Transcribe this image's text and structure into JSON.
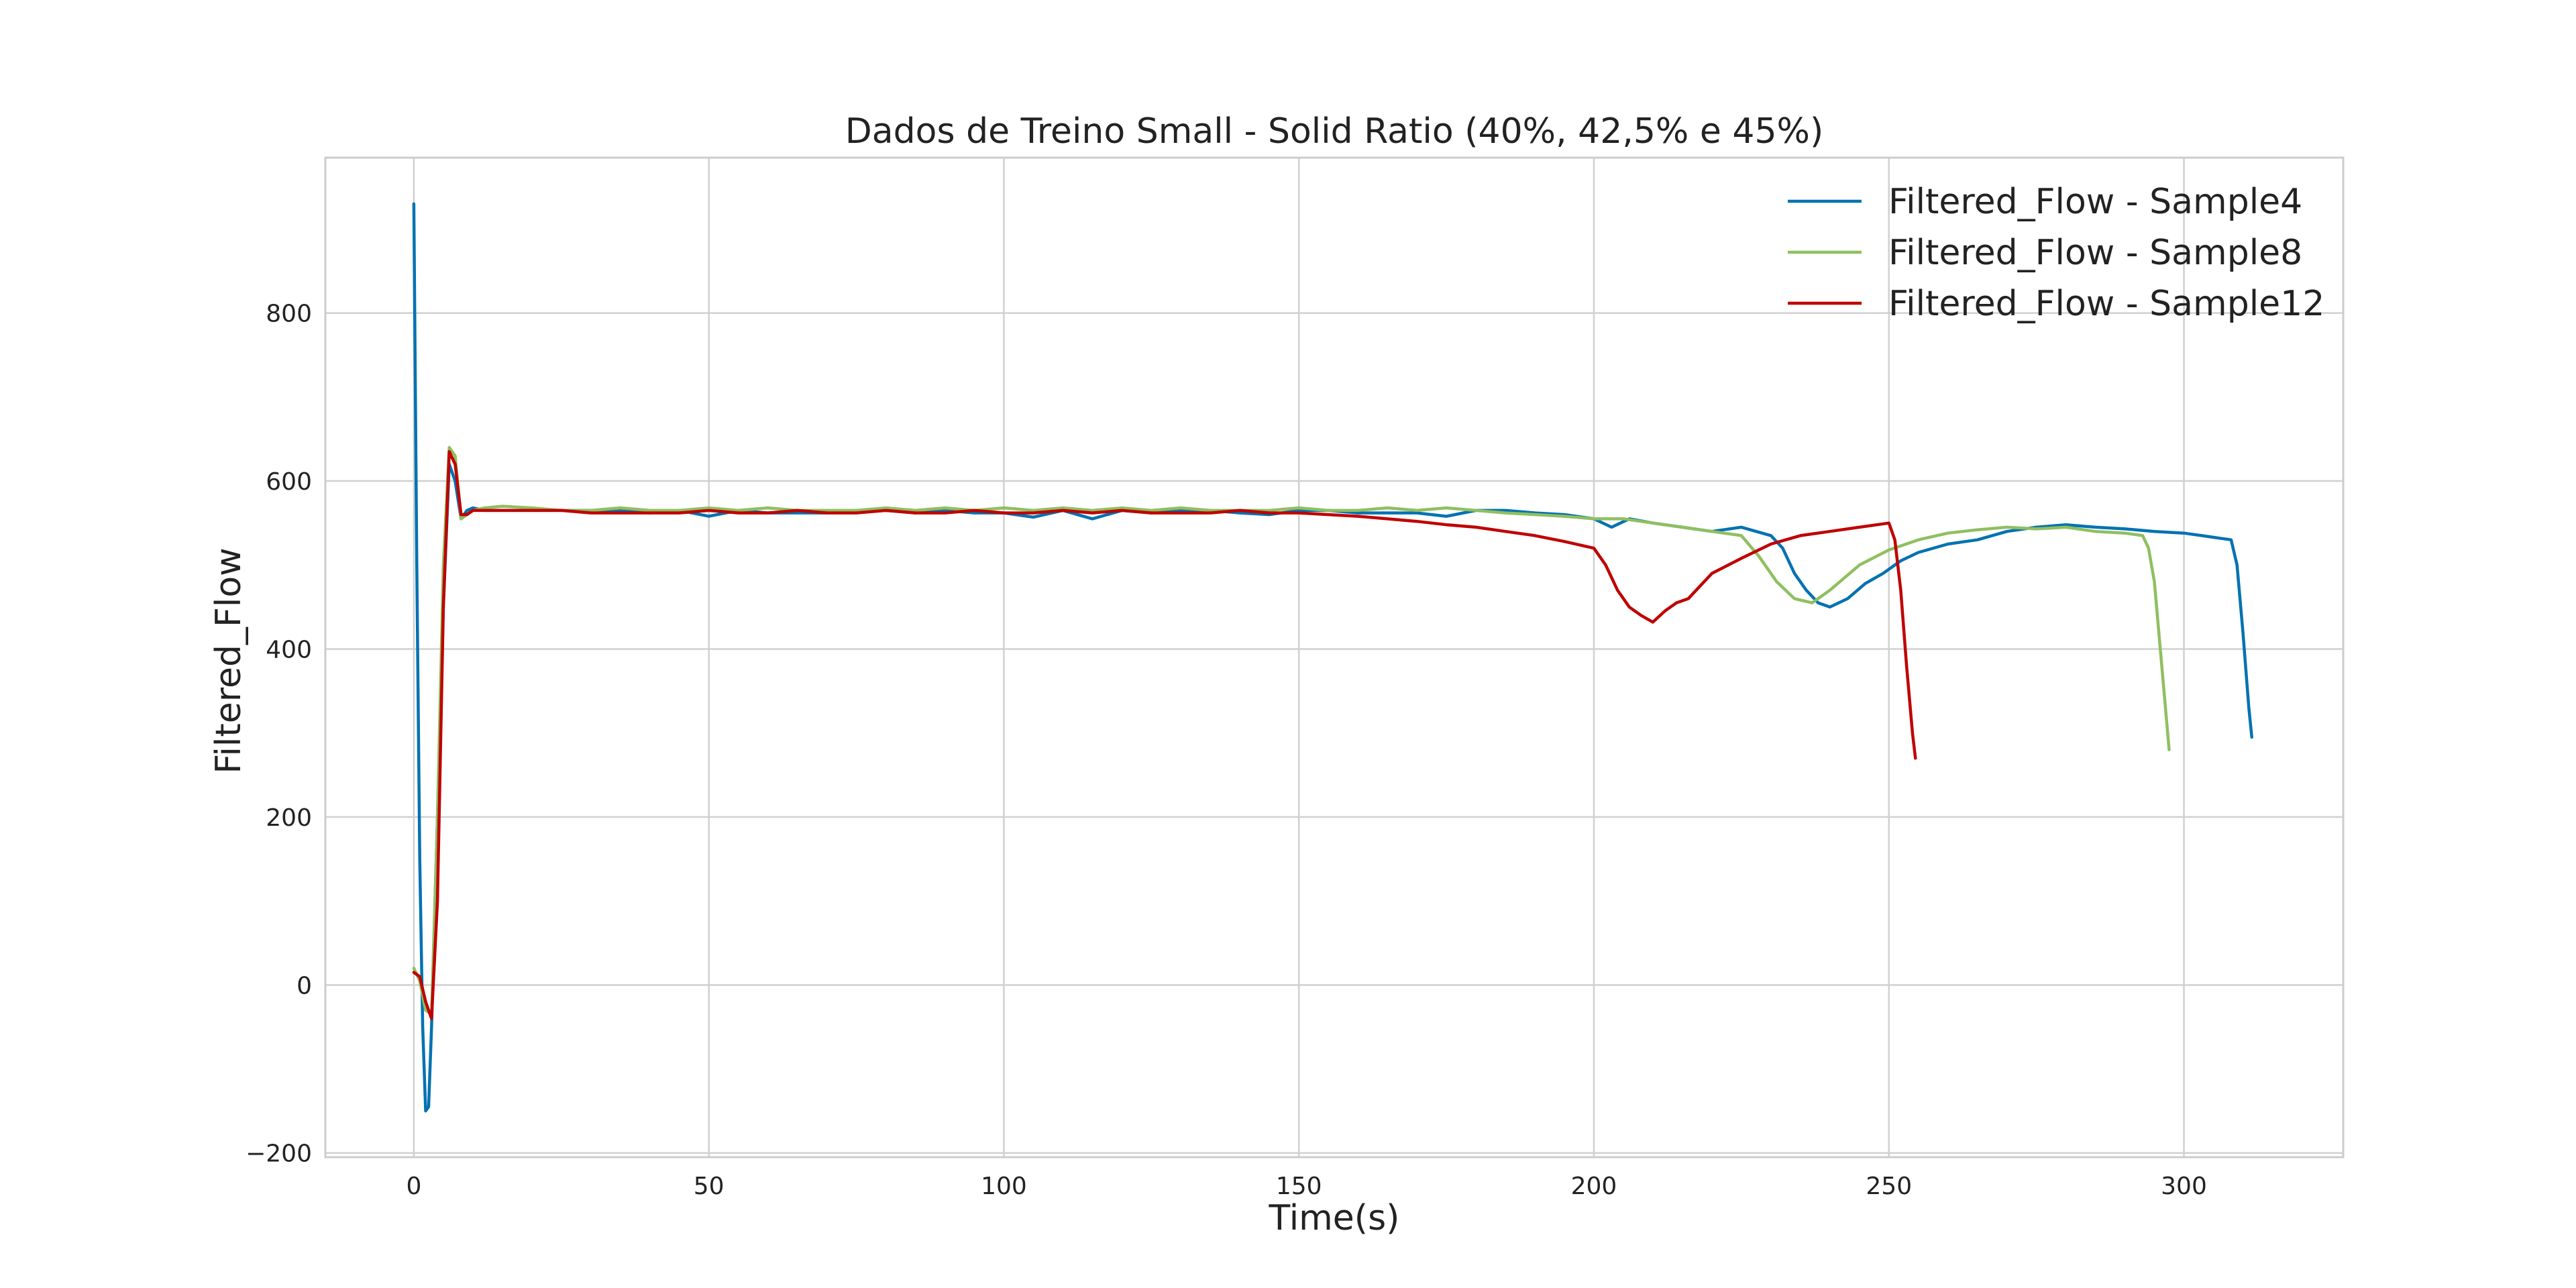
{
  "chart_data": {
    "type": "line",
    "title": "Dados de Treino Small - Solid Ratio (40%, 42,5% e 45%)",
    "xlabel": "Time(s)",
    "ylabel": "Filtered_Flow",
    "xlim": [
      -15,
      327
    ],
    "ylim": [
      -205,
      985
    ],
    "xticks": [
      0,
      50,
      100,
      150,
      200,
      250,
      300
    ],
    "yticks": [
      -200,
      0,
      200,
      400,
      600,
      800
    ],
    "xtick_labels": [
      "0",
      "50",
      "100",
      "150",
      "200",
      "250",
      "300"
    ],
    "ytick_labels": [
      "−200",
      "0",
      "200",
      "400",
      "600",
      "800"
    ],
    "grid": true,
    "legend_position": "top-right",
    "series": [
      {
        "name": "Filtered_Flow - Sample4",
        "color": "#0072b2",
        "x": [
          0,
          0.5,
          1,
          1.5,
          2,
          2.5,
          3,
          4,
          5,
          6,
          7,
          8,
          9,
          10,
          12,
          15,
          20,
          25,
          30,
          35,
          40,
          45,
          50,
          55,
          60,
          65,
          70,
          75,
          80,
          85,
          90,
          95,
          100,
          105,
          110,
          115,
          120,
          125,
          130,
          135,
          140,
          145,
          150,
          155,
          160,
          165,
          170,
          175,
          180,
          185,
          190,
          195,
          200,
          203,
          206,
          210,
          215,
          220,
          225,
          230,
          232,
          234,
          236,
          238,
          240,
          243,
          246,
          249,
          252,
          255,
          260,
          265,
          270,
          275,
          280,
          285,
          290,
          295,
          300,
          303,
          306,
          308,
          309,
          310,
          311,
          311.5
        ],
        "y": [
          930,
          500,
          150,
          -50,
          -150,
          -145,
          -50,
          200,
          450,
          620,
          600,
          555,
          565,
          568,
          565,
          565,
          565,
          565,
          565,
          565,
          562,
          565,
          558,
          565,
          562,
          562,
          562,
          565,
          565,
          562,
          565,
          562,
          562,
          557,
          565,
          555,
          565,
          562,
          565,
          565,
          562,
          560,
          565,
          565,
          562,
          562,
          562,
          558,
          565,
          565,
          562,
          560,
          555,
          545,
          555,
          550,
          545,
          540,
          545,
          535,
          520,
          490,
          470,
          455,
          450,
          460,
          478,
          490,
          505,
          515,
          525,
          530,
          540,
          545,
          548,
          545,
          543,
          540,
          538,
          535,
          532,
          530,
          500,
          420,
          330,
          295
        ]
      },
      {
        "name": "Filtered_Flow - Sample8",
        "color": "#8fbf60",
        "x": [
          0,
          1,
          2,
          3,
          4,
          5,
          6,
          7,
          8,
          9,
          10,
          12,
          15,
          20,
          25,
          30,
          35,
          40,
          45,
          50,
          55,
          60,
          65,
          70,
          75,
          80,
          85,
          90,
          95,
          100,
          105,
          110,
          115,
          120,
          125,
          130,
          135,
          140,
          145,
          150,
          155,
          160,
          165,
          170,
          175,
          180,
          185,
          190,
          195,
          200,
          205,
          210,
          215,
          220,
          225,
          228,
          231,
          234,
          237,
          240,
          245,
          250,
          255,
          260,
          265,
          270,
          275,
          280,
          285,
          290,
          293,
          294,
          295,
          296,
          297,
          297.5
        ],
        "y": [
          20,
          5,
          -30,
          -35,
          200,
          500,
          640,
          630,
          555,
          560,
          565,
          568,
          570,
          568,
          565,
          565,
          568,
          565,
          565,
          568,
          565,
          568,
          565,
          565,
          565,
          568,
          565,
          568,
          565,
          568,
          565,
          568,
          565,
          568,
          565,
          568,
          565,
          565,
          565,
          568,
          565,
          565,
          568,
          565,
          568,
          565,
          562,
          560,
          558,
          555,
          555,
          550,
          545,
          540,
          535,
          510,
          480,
          460,
          455,
          470,
          500,
          518,
          530,
          538,
          542,
          545,
          543,
          545,
          540,
          538,
          535,
          520,
          480,
          400,
          320,
          280
        ]
      },
      {
        "name": "Filtered_Flow - Sample12",
        "color": "#c00000",
        "x": [
          0,
          1,
          2,
          3,
          4,
          5,
          6,
          7,
          8,
          9,
          10,
          12,
          15,
          20,
          25,
          30,
          35,
          40,
          45,
          50,
          55,
          60,
          65,
          70,
          75,
          80,
          85,
          90,
          95,
          100,
          105,
          110,
          115,
          120,
          125,
          130,
          135,
          140,
          145,
          150,
          155,
          160,
          165,
          170,
          175,
          180,
          185,
          190,
          195,
          200,
          202,
          204,
          206,
          208,
          210,
          212,
          214,
          216,
          218,
          220,
          225,
          230,
          235,
          240,
          245,
          248,
          250,
          251,
          252,
          253,
          254,
          254.5
        ],
        "y": [
          15,
          10,
          -20,
          -40,
          100,
          450,
          635,
          620,
          560,
          560,
          565,
          565,
          565,
          565,
          565,
          562,
          562,
          562,
          562,
          565,
          562,
          562,
          565,
          562,
          562,
          565,
          562,
          562,
          565,
          562,
          562,
          565,
          562,
          565,
          562,
          562,
          562,
          565,
          562,
          562,
          560,
          558,
          555,
          552,
          548,
          545,
          540,
          535,
          528,
          520,
          500,
          470,
          450,
          440,
          432,
          445,
          455,
          460,
          475,
          490,
          508,
          525,
          535,
          540,
          545,
          548,
          550,
          530,
          470,
          380,
          300,
          270
        ]
      }
    ]
  }
}
